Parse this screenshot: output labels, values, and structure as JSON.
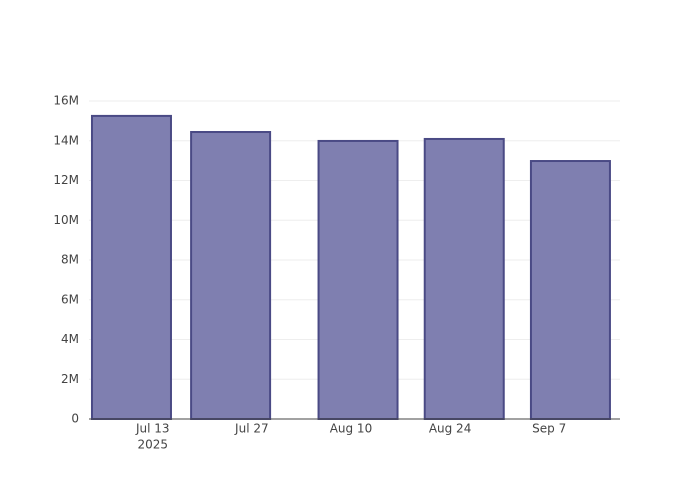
{
  "chart_data": {
    "type": "bar",
    "x": [
      "2025-07-10",
      "2025-07-24",
      "2025-08-11",
      "2025-08-26",
      "2025-09-10"
    ],
    "values": [
      15250000,
      14440000,
      13990000,
      14090000,
      12980000
    ],
    "color": "#7f7fb0",
    "line_color": "#4a4a85",
    "xlim": [
      "2025-07-04",
      "2025-09-17"
    ],
    "xticks": [
      {
        "value": "2025-07-13",
        "label": "Jul 13"
      },
      {
        "value": "2025-07-27",
        "label": "Jul 27"
      },
      {
        "value": "2025-08-10",
        "label": "Aug 10"
      },
      {
        "value": "2025-08-24",
        "label": "Aug 24"
      },
      {
        "value": "2025-09-07",
        "label": "Sep 7"
      }
    ],
    "x_year_label": "2025",
    "ylim": [
      0,
      16000000
    ],
    "yticks": [
      0,
      {
        "value": 2000000,
        "label": "2M"
      },
      {
        "value": 4000000,
        "label": "4M"
      },
      {
        "value": 6000000,
        "label": "6M"
      },
      {
        "value": 8000000,
        "label": "8M"
      },
      {
        "value": 10000000,
        "label": "10M"
      },
      {
        "value": 12000000,
        "label": "12M"
      },
      {
        "value": 14000000,
        "label": "14M"
      },
      {
        "value": 16000000,
        "label": "16M"
      }
    ],
    "grid": true
  }
}
